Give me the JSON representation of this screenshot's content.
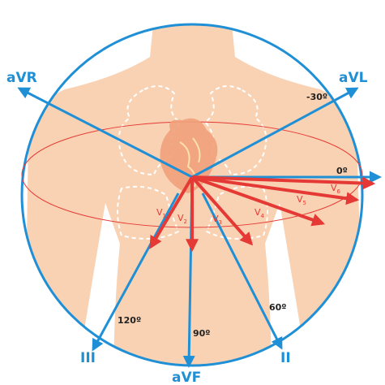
{
  "limb_leads": [
    "aVR",
    "aVL",
    "III",
    "aVF",
    "II"
  ],
  "angles": [
    "-30º",
    "0º",
    "60º",
    "90º",
    "120º"
  ],
  "chest_leads": [
    {
      "letter": "V",
      "sub": "1"
    },
    {
      "letter": "V",
      "sub": "2"
    },
    {
      "letter": "V",
      "sub": "3"
    },
    {
      "letter": "V",
      "sub": "4"
    },
    {
      "letter": "V",
      "sub": "5"
    },
    {
      "letter": "V",
      "sub": "6"
    }
  ]
}
